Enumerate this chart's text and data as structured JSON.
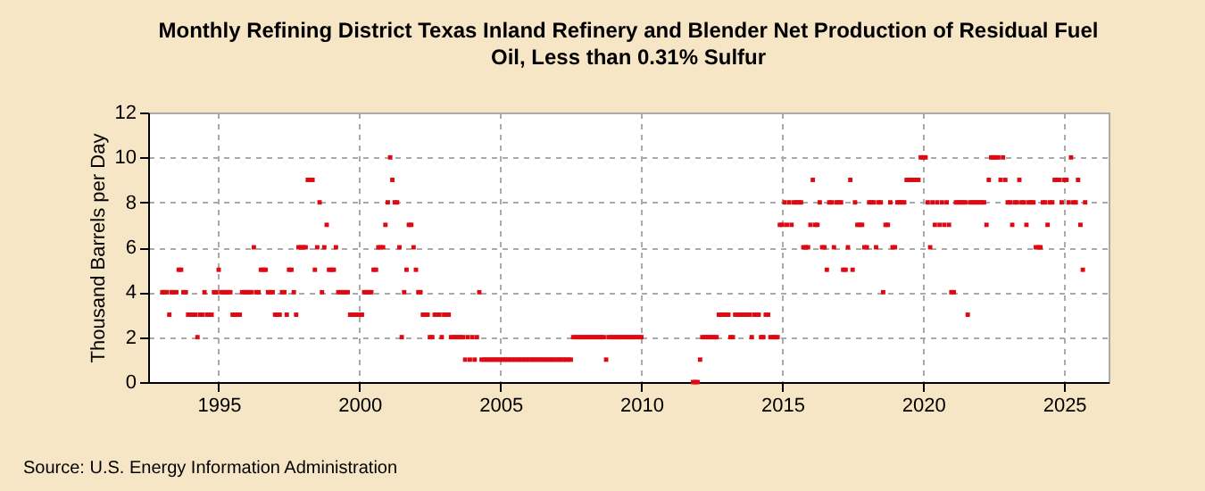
{
  "chart_data": {
    "type": "scatter",
    "title": "Monthly Refining District Texas Inland Refinery and Blender Net Production of Residual Fuel Oil, Less than 0.31% Sulfur",
    "ylabel": "Thousand Barrels per Day",
    "annotations": [
      "Source: U.S. Energy Information Administration"
    ],
    "xlim": [
      "1992-07",
      "2026-08"
    ],
    "xticks": [
      "1995",
      "2000",
      "2005",
      "2010",
      "2015",
      "2020",
      "2025"
    ],
    "ylim": [
      0,
      12
    ],
    "yticks": [
      0,
      2,
      4,
      6,
      8,
      10,
      12
    ],
    "grid": true,
    "marker": "square",
    "series": [
      {
        "color": "#dd0a14",
        "x": [
          "1993-01",
          "1993-02",
          "1993-03",
          "1993-04",
          "1993-05",
          "1993-06",
          "1993-07",
          "1993-08",
          "1993-09",
          "1993-10",
          "1993-11",
          "1993-12",
          "1994-01",
          "1994-02",
          "1994-03",
          "1994-04",
          "1994-05",
          "1994-06",
          "1994-07",
          "1994-08",
          "1994-09",
          "1994-10",
          "1994-11",
          "1994-12",
          "1995-01",
          "1995-02",
          "1995-03",
          "1995-04",
          "1995-05",
          "1995-06",
          "1995-07",
          "1995-08",
          "1995-09",
          "1995-10",
          "1995-11",
          "1995-12",
          "1996-01",
          "1996-02",
          "1996-03",
          "1996-04",
          "1996-05",
          "1996-06",
          "1996-07",
          "1996-08",
          "1996-09",
          "1996-10",
          "1996-11",
          "1996-12",
          "1997-01",
          "1997-02",
          "1997-03",
          "1997-04",
          "1997-05",
          "1997-06",
          "1997-07",
          "1997-08",
          "1997-09",
          "1997-10",
          "1997-11",
          "1997-12",
          "1998-01",
          "1998-02",
          "1998-03",
          "1998-04",
          "1998-05",
          "1998-06",
          "1998-07",
          "1998-08",
          "1998-09",
          "1998-10",
          "1998-11",
          "1998-12",
          "1999-01",
          "1999-02",
          "1999-03",
          "1999-04",
          "1999-05",
          "1999-06",
          "1999-07",
          "1999-08",
          "1999-09",
          "1999-10",
          "1999-11",
          "1999-12",
          "2000-01",
          "2000-02",
          "2000-03",
          "2000-04",
          "2000-05",
          "2000-06",
          "2000-07",
          "2000-08",
          "2000-09",
          "2000-10",
          "2000-11",
          "2000-12",
          "2001-01",
          "2001-02",
          "2001-03",
          "2001-04",
          "2001-05",
          "2001-06",
          "2001-07",
          "2001-08",
          "2001-09",
          "2001-10",
          "2001-11",
          "2001-12",
          "2002-01",
          "2002-02",
          "2002-03",
          "2002-04",
          "2002-05",
          "2002-06",
          "2002-07",
          "2002-08",
          "2002-09",
          "2002-10",
          "2002-11",
          "2002-12",
          "2003-01",
          "2003-02",
          "2003-03",
          "2003-04",
          "2003-05",
          "2003-06",
          "2003-07",
          "2003-08",
          "2003-09",
          "2003-10",
          "2003-11",
          "2003-12",
          "2004-01",
          "2004-02",
          "2004-03",
          "2004-04",
          "2004-05",
          "2004-06",
          "2004-07",
          "2004-08",
          "2004-09",
          "2004-10",
          "2004-11",
          "2004-12",
          "2005-01",
          "2005-02",
          "2005-03",
          "2005-04",
          "2005-05",
          "2005-06",
          "2005-07",
          "2005-08",
          "2005-09",
          "2005-10",
          "2005-11",
          "2005-12",
          "2006-01",
          "2006-02",
          "2006-03",
          "2006-04",
          "2006-05",
          "2006-06",
          "2006-07",
          "2006-08",
          "2006-09",
          "2006-10",
          "2006-11",
          "2006-12",
          "2007-01",
          "2007-02",
          "2007-03",
          "2007-04",
          "2007-05",
          "2007-06",
          "2007-07",
          "2007-08",
          "2007-09",
          "2007-10",
          "2007-11",
          "2007-12",
          "2008-01",
          "2008-02",
          "2008-03",
          "2008-04",
          "2008-05",
          "2008-06",
          "2008-07",
          "2008-08",
          "2008-09",
          "2008-10",
          "2008-11",
          "2008-12",
          "2009-01",
          "2009-02",
          "2009-03",
          "2009-04",
          "2009-05",
          "2009-06",
          "2009-07",
          "2009-08",
          "2009-09",
          "2009-10",
          "2009-11",
          "2009-12",
          "2010-01",
          "2011-11",
          "2011-12",
          "2012-01",
          "2012-02",
          "2012-03",
          "2012-04",
          "2012-05",
          "2012-06",
          "2012-07",
          "2012-08",
          "2012-09",
          "2012-10",
          "2012-11",
          "2012-12",
          "2013-01",
          "2013-02",
          "2013-03",
          "2013-04",
          "2013-05",
          "2013-06",
          "2013-07",
          "2013-08",
          "2013-09",
          "2013-10",
          "2013-11",
          "2013-12",
          "2014-01",
          "2014-02",
          "2014-03",
          "2014-04",
          "2014-05",
          "2014-06",
          "2014-07",
          "2014-08",
          "2014-09",
          "2014-10",
          "2014-11",
          "2014-12",
          "2015-01",
          "2015-02",
          "2015-03",
          "2015-04",
          "2015-05",
          "2015-06",
          "2015-07",
          "2015-08",
          "2015-09",
          "2015-10",
          "2015-11",
          "2015-12",
          "2016-01",
          "2016-02",
          "2016-03",
          "2016-04",
          "2016-05",
          "2016-06",
          "2016-07",
          "2016-08",
          "2016-09",
          "2016-10",
          "2016-11",
          "2016-12",
          "2017-01",
          "2017-02",
          "2017-03",
          "2017-04",
          "2017-05",
          "2017-06",
          "2017-07",
          "2017-08",
          "2017-09",
          "2017-10",
          "2017-11",
          "2017-12",
          "2018-01",
          "2018-02",
          "2018-03",
          "2018-04",
          "2018-05",
          "2018-06",
          "2018-07",
          "2018-08",
          "2018-09",
          "2018-10",
          "2018-11",
          "2018-12",
          "2019-01",
          "2019-02",
          "2019-03",
          "2019-04",
          "2019-05",
          "2019-06",
          "2019-07",
          "2019-08",
          "2019-09",
          "2019-10",
          "2019-11",
          "2019-12",
          "2020-01",
          "2020-02",
          "2020-03",
          "2020-04",
          "2020-05",
          "2020-06",
          "2020-07",
          "2020-08",
          "2020-09",
          "2020-10",
          "2020-11",
          "2020-12",
          "2021-01",
          "2021-02",
          "2021-03",
          "2021-04",
          "2021-05",
          "2021-06",
          "2021-07",
          "2021-08",
          "2021-09",
          "2021-10",
          "2021-11",
          "2021-12",
          "2022-01",
          "2022-02",
          "2022-03",
          "2022-04",
          "2022-05",
          "2022-06",
          "2022-07",
          "2022-08",
          "2022-09",
          "2022-10",
          "2022-11",
          "2022-12",
          "2023-01",
          "2023-02",
          "2023-03",
          "2023-04",
          "2023-05",
          "2023-06",
          "2023-07",
          "2023-08",
          "2023-09",
          "2023-10",
          "2023-11",
          "2023-12",
          "2024-01",
          "2024-02",
          "2024-03",
          "2024-04",
          "2024-05",
          "2024-06",
          "2024-07",
          "2024-08",
          "2024-09",
          "2024-10",
          "2024-11",
          "2024-12",
          "2025-01",
          "2025-02",
          "2025-03",
          "2025-04",
          "2025-05",
          "2025-06",
          "2025-07",
          "2025-08",
          "2025-09",
          "2025-10"
        ],
        "values": [
          4,
          4,
          4,
          3,
          4,
          4,
          4,
          5,
          5,
          4,
          4,
          3,
          3,
          3,
          3,
          2,
          3,
          3,
          4,
          3,
          3,
          3,
          4,
          4,
          5,
          4,
          4,
          4,
          4,
          4,
          3,
          3,
          3,
          3,
          4,
          4,
          4,
          4,
          4,
          6,
          4,
          4,
          5,
          5,
          5,
          4,
          4,
          4,
          3,
          3,
          3,
          4,
          4,
          3,
          5,
          5,
          4,
          3,
          6,
          6,
          6,
          6,
          9,
          9,
          9,
          5,
          6,
          8,
          4,
          6,
          7,
          5,
          5,
          5,
          6,
          4,
          4,
          4,
          4,
          4,
          3,
          3,
          3,
          3,
          3,
          3,
          4,
          4,
          4,
          4,
          5,
          5,
          6,
          6,
          6,
          7,
          8,
          10,
          9,
          8,
          8,
          6,
          2,
          4,
          5,
          7,
          7,
          6,
          5,
          4,
          4,
          3,
          3,
          3,
          2,
          2,
          3,
          3,
          3,
          2,
          3,
          3,
          3,
          2,
          2,
          2,
          2,
          2,
          2,
          1,
          2,
          1,
          2,
          1,
          2,
          4,
          1,
          1,
          1,
          1,
          1,
          1,
          1,
          1,
          1,
          1,
          1,
          1,
          1,
          1,
          1,
          1,
          1,
          1,
          1,
          1,
          1,
          1,
          1,
          1,
          1,
          1,
          1,
          1,
          1,
          1,
          1,
          1,
          1,
          1,
          1,
          1,
          1,
          1,
          1,
          2,
          2,
          2,
          2,
          2,
          2,
          2,
          2,
          2,
          2,
          2,
          2,
          2,
          2,
          1,
          2,
          2,
          2,
          2,
          2,
          2,
          2,
          2,
          2,
          2,
          2,
          2,
          2,
          2,
          2,
          0,
          0,
          0,
          1,
          2,
          2,
          2,
          2,
          2,
          2,
          2,
          3,
          3,
          3,
          3,
          3,
          2,
          2,
          3,
          3,
          3,
          3,
          3,
          3,
          3,
          2,
          3,
          3,
          3,
          2,
          2,
          3,
          3,
          2,
          2,
          2,
          2,
          7,
          7,
          8,
          7,
          8,
          7,
          8,
          8,
          8,
          8,
          6,
          6,
          6,
          7,
          9,
          7,
          7,
          8,
          6,
          6,
          5,
          8,
          8,
          6,
          8,
          8,
          8,
          5,
          5,
          6,
          9,
          5,
          8,
          7,
          7,
          7,
          6,
          6,
          8,
          8,
          8,
          6,
          8,
          8,
          4,
          7,
          7,
          8,
          6,
          6,
          8,
          8,
          8,
          8,
          9,
          9,
          9,
          9,
          9,
          9,
          10,
          10,
          10,
          8,
          6,
          8,
          7,
          8,
          7,
          8,
          7,
          8,
          7,
          4,
          4,
          8,
          8,
          8,
          8,
          8,
          3,
          8,
          8,
          8,
          8,
          8,
          8,
          8,
          7,
          9,
          10,
          10,
          10,
          10,
          9,
          10,
          9,
          8,
          8,
          7,
          8,
          8,
          9,
          8,
          8,
          7,
          8,
          8,
          8,
          6,
          6,
          6,
          8,
          8,
          7,
          8,
          8,
          9,
          9,
          9,
          8,
          9,
          9,
          8,
          10,
          8,
          8,
          9,
          7,
          5,
          8
        ]
      }
    ]
  }
}
